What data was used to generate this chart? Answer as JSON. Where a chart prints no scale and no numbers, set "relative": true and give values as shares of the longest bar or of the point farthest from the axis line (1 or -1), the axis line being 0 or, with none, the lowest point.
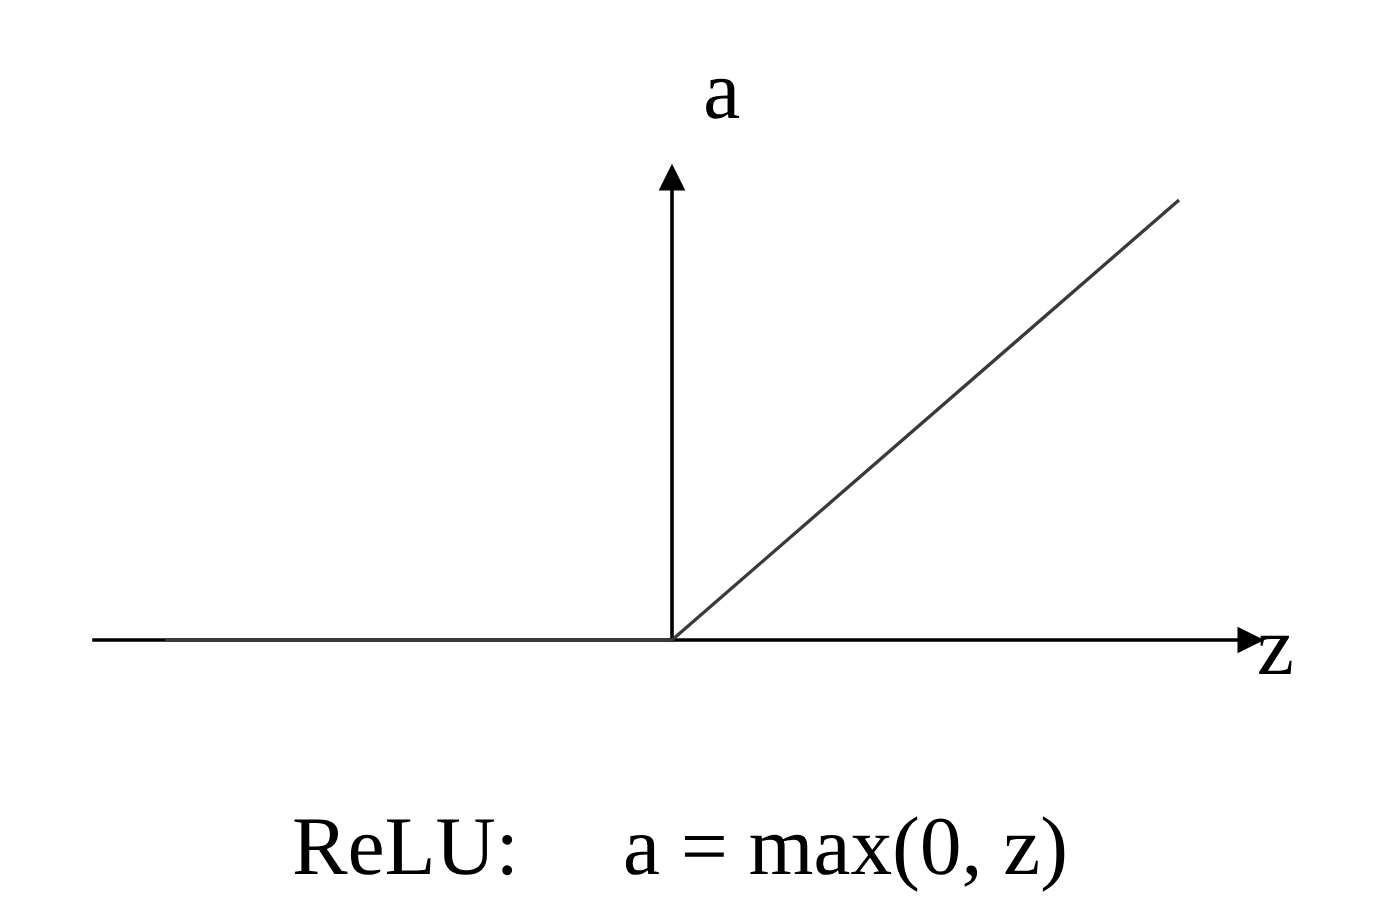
{
  "chart_data": {
    "type": "line",
    "xlabel": "z",
    "ylabel": "a",
    "categories": [
      null,
      null,
      null
    ],
    "series": [
      {
        "color": "#3a3a3a",
        "values": [
          0,
          0,
          1
        ]
      }
    ],
    "relative": true,
    "line_style": "solid",
    "annotations": [
      "ReLU:     a = max(0, z)"
    ]
  }
}
